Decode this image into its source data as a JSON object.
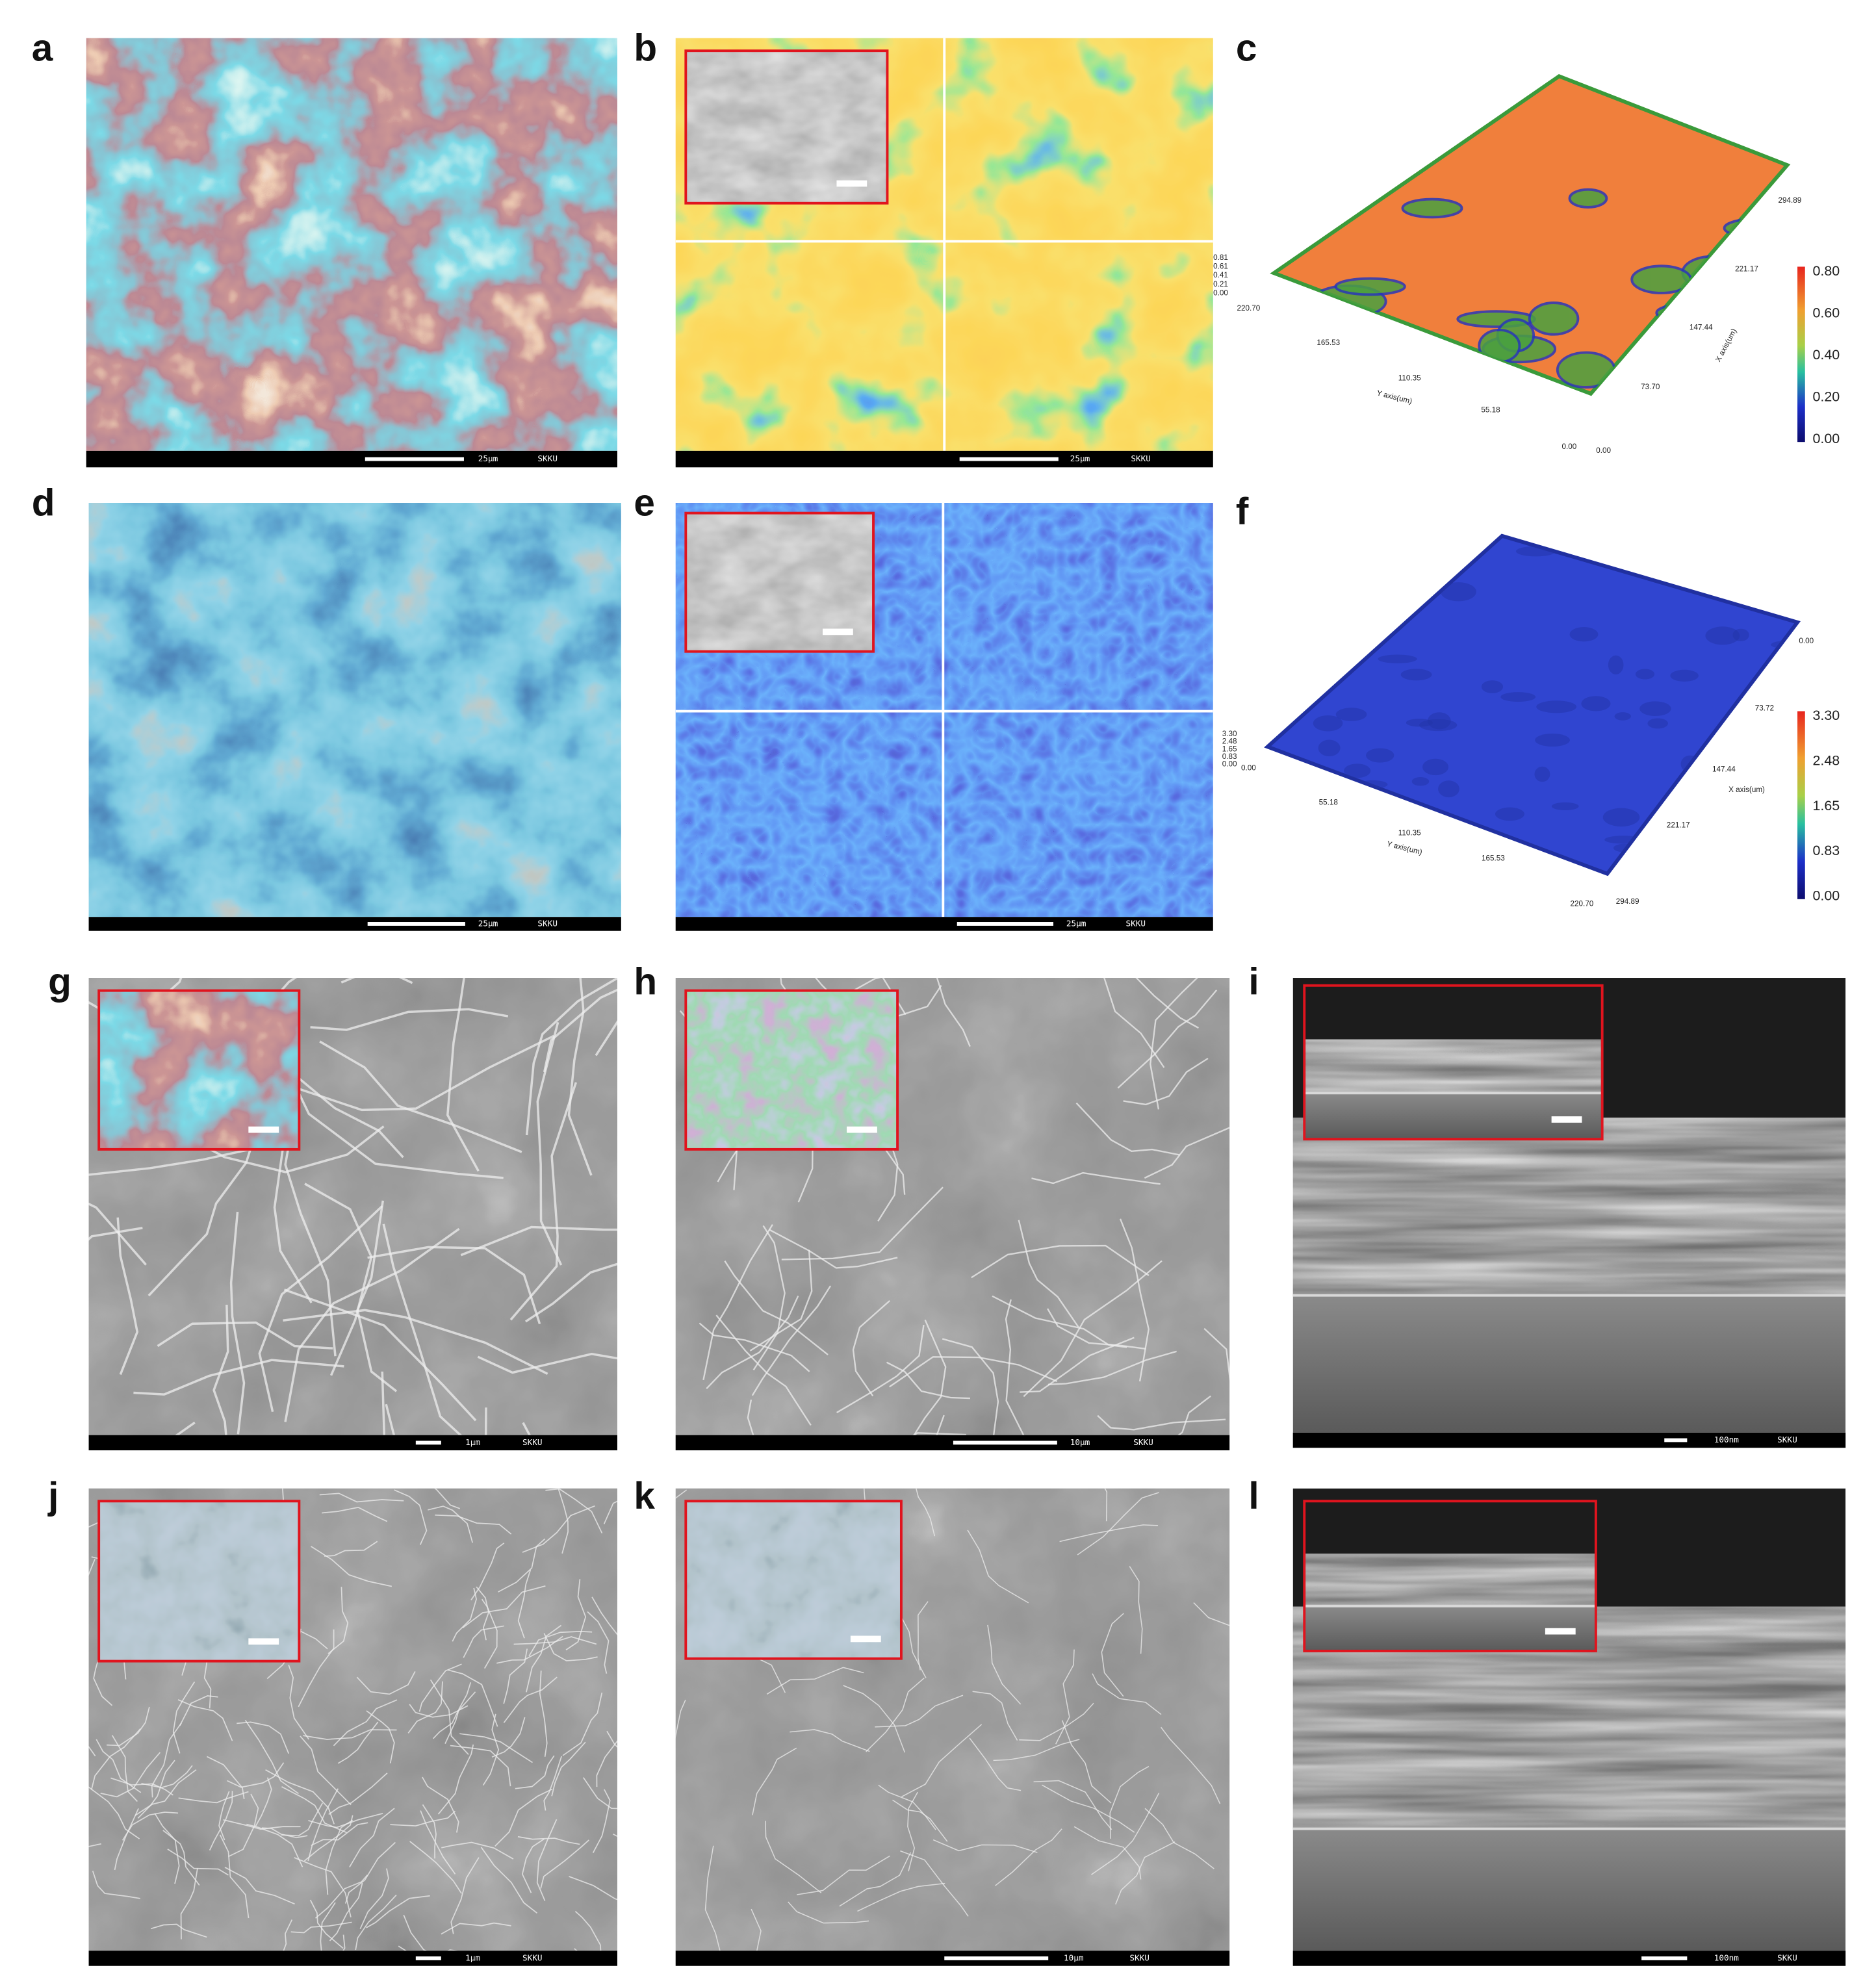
{
  "panels": [
    {
      "letter": "a",
      "scale_label": "25μm",
      "tag": "SKKU"
    },
    {
      "letter": "b",
      "scale_label": "25μm",
      "tag": "SKKU"
    },
    {
      "letter": "c",
      "plot": {
        "y_axis_label": "Y axis(um)",
        "x_axis_label": "X axis(um)",
        "y_ticks": [
          "220.70",
          "165.53",
          "110.35",
          "55.18",
          "0.00"
        ],
        "x_ticks": [
          "294.89",
          "221.17",
          "147.44",
          "73.70",
          "0.00"
        ],
        "z_ticks": [
          "0.81",
          "0.61",
          "0.41",
          "0.21",
          "0.00"
        ],
        "colorbar_ticks": [
          "0.80",
          "0.60",
          "0.40",
          "0.20",
          "0.00"
        ]
      }
    },
    {
      "letter": "d",
      "scale_label": "25μm",
      "tag": "SKKU"
    },
    {
      "letter": "e",
      "scale_label": "25μm",
      "tag": "SKKU"
    },
    {
      "letter": "f",
      "plot": {
        "y_axis_label": "Y axis(um)",
        "x_axis_label": "X axis(um)",
        "y_ticks": [
          "0.00",
          "55.18",
          "110.35",
          "165.53",
          "220.70"
        ],
        "x_ticks": [
          "0.00",
          "73.72",
          "147.44",
          "221.17",
          "294.89"
        ],
        "z_ticks": [
          "3.30",
          "2.48",
          "1.65",
          "0.83",
          "0.00"
        ],
        "colorbar_ticks": [
          "3.30",
          "2.48",
          "1.65",
          "0.83",
          "0.00"
        ]
      }
    },
    {
      "letter": "g",
      "scale_label": "1μm",
      "tag": "SKKU"
    },
    {
      "letter": "h",
      "scale_label": "10μm",
      "tag": "SKKU"
    },
    {
      "letter": "i",
      "scale_label": "100nm",
      "tag": "SKKU"
    },
    {
      "letter": "j",
      "scale_label": "1μm",
      "tag": "SKKU"
    },
    {
      "letter": "k",
      "scale_label": "10μm",
      "tag": "SKKU"
    },
    {
      "letter": "l",
      "scale_label": "100nm",
      "tag": "SKKU"
    }
  ]
}
